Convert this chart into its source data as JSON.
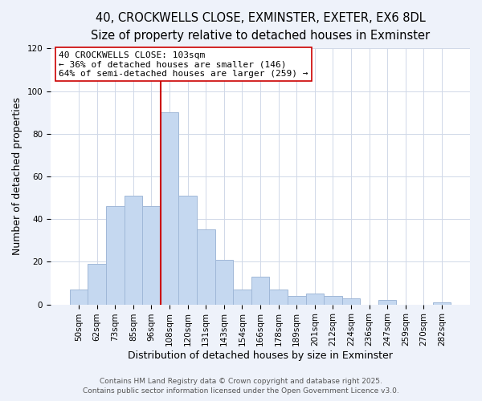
{
  "title_line1": "40, CROCKWELLS CLOSE, EXMINSTER, EXETER, EX6 8DL",
  "title_line2": "Size of property relative to detached houses in Exminster",
  "xlabel": "Distribution of detached houses by size in Exminster",
  "ylabel": "Number of detached properties",
  "bar_labels": [
    "50sqm",
    "62sqm",
    "73sqm",
    "85sqm",
    "96sqm",
    "108sqm",
    "120sqm",
    "131sqm",
    "143sqm",
    "154sqm",
    "166sqm",
    "178sqm",
    "189sqm",
    "201sqm",
    "212sqm",
    "224sqm",
    "236sqm",
    "247sqm",
    "259sqm",
    "270sqm",
    "282sqm"
  ],
  "bar_values": [
    7,
    19,
    46,
    51,
    46,
    90,
    51,
    35,
    21,
    7,
    13,
    7,
    4,
    5,
    4,
    3,
    0,
    2,
    0,
    0,
    1
  ],
  "bar_color": "#c5d8f0",
  "bar_edge_color": "#a0b8d8",
  "vline_x_index": 5,
  "vline_color": "#cc0000",
  "ylim": [
    0,
    120
  ],
  "yticks": [
    0,
    20,
    40,
    60,
    80,
    100,
    120
  ],
  "annotation_title": "40 CROCKWELLS CLOSE: 103sqm",
  "annotation_line2": "← 36% of detached houses are smaller (146)",
  "annotation_line3": "64% of semi-detached houses are larger (259) →",
  "footer_line1": "Contains HM Land Registry data © Crown copyright and database right 2025.",
  "footer_line2": "Contains public sector information licensed under the Open Government Licence v3.0.",
  "background_color": "#eef2fa",
  "plot_background_color": "#ffffff",
  "grid_color": "#d0d8e8",
  "title_fontsize": 10.5,
  "subtitle_fontsize": 9.5,
  "axis_label_fontsize": 9,
  "tick_fontsize": 7.5,
  "footer_fontsize": 6.5,
  "annotation_fontsize": 8
}
